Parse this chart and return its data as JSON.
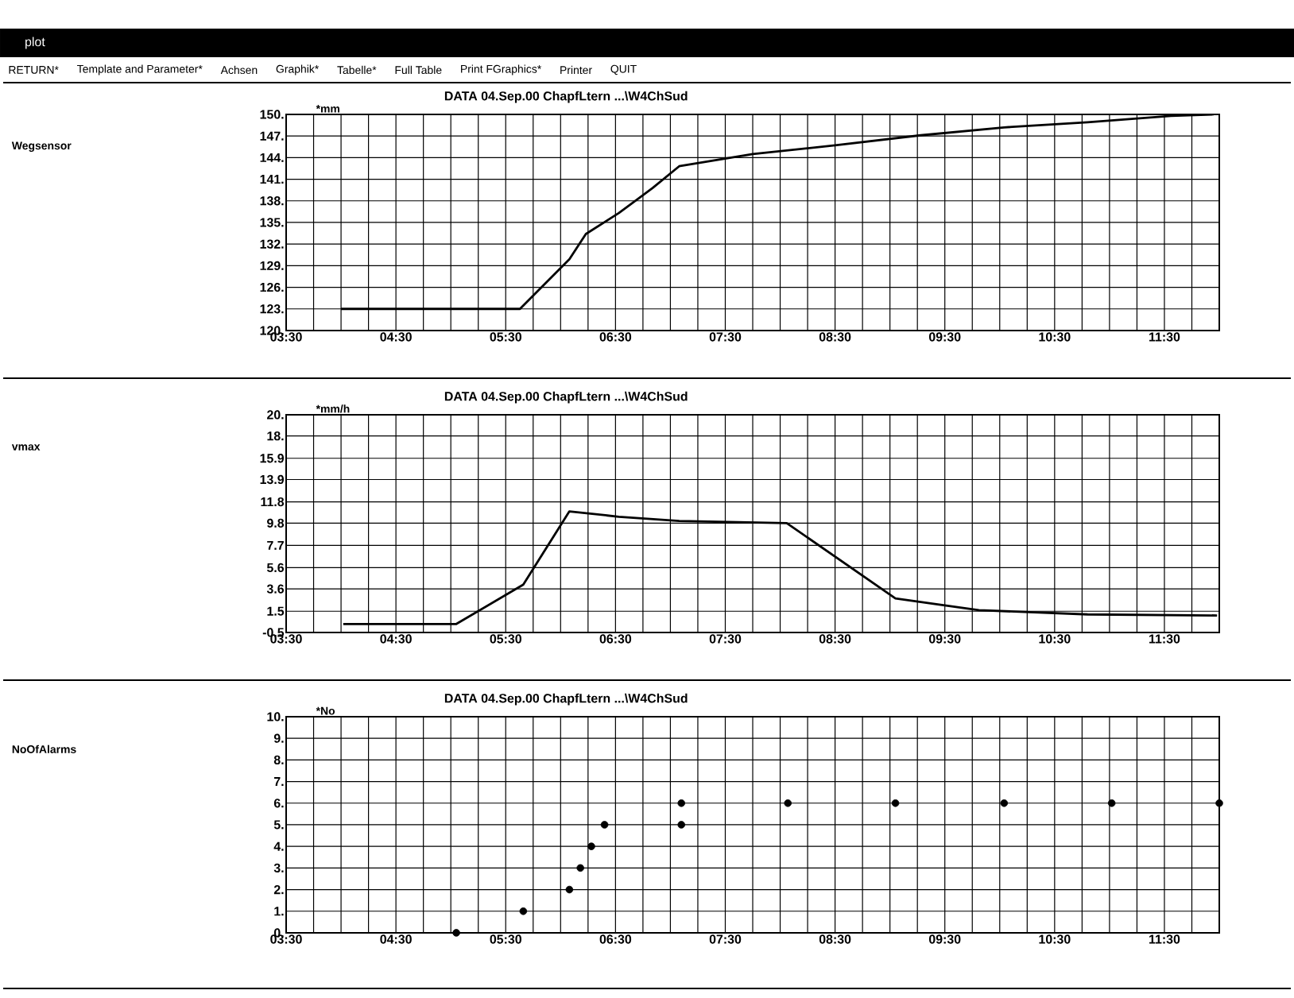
{
  "chart_data": [
    {
      "type": "line",
      "title": "DATA  04.Sep.00   ChapfLtern     ...\\W4ChSud",
      "ylabel": "Wegsensor",
      "annotations": [
        "*mm",
        "plot",
        "RETURN*",
        "Template and Parameter*",
        "Achsen",
        "Graphik*",
        "Tabelle*",
        "Full Table",
        "Print FGraphics*",
        "Printer",
        "QUIT"
      ],
      "x": [
        4.0,
        5.63,
        6.08,
        6.23,
        6.53,
        6.84,
        7.08,
        7.75,
        8.5,
        9.28,
        10.04,
        10.8,
        11.56,
        11.95
      ],
      "series": [
        {
          "color": "#000000",
          "values": [
            123,
            123,
            129.9,
            133.4,
            136.3,
            139.8,
            142.8,
            144.5,
            145.7,
            147.1,
            148.2,
            148.9,
            149.8,
            150
          ]
        }
      ],
      "xlim": [
        3.5,
        12.0
      ],
      "xticks": [
        {
          "value": 3.5,
          "label": "03:30"
        },
        {
          "value": 3.75,
          "label": null
        },
        {
          "value": 4.0,
          "label": null
        },
        {
          "value": 4.25,
          "label": null
        },
        {
          "value": 4.5,
          "label": "04:30"
        },
        {
          "value": 4.75,
          "label": null
        },
        {
          "value": 5.0,
          "label": null
        },
        {
          "value": 5.25,
          "label": null
        },
        {
          "value": 5.5,
          "label": "05:30"
        },
        {
          "value": 5.75,
          "label": null
        },
        {
          "value": 6.0,
          "label": null
        },
        {
          "value": 6.25,
          "label": null
        },
        {
          "value": 6.5,
          "label": "06:30"
        },
        {
          "value": 6.75,
          "label": null
        },
        {
          "value": 7.0,
          "label": null
        },
        {
          "value": 7.25,
          "label": null
        },
        {
          "value": 7.5,
          "label": "07:30"
        },
        {
          "value": 7.75,
          "label": null
        },
        {
          "value": 8.0,
          "label": null
        },
        {
          "value": 8.25,
          "label": null
        },
        {
          "value": 8.5,
          "label": "08:30"
        },
        {
          "value": 8.75,
          "label": null
        },
        {
          "value": 9.0,
          "label": null
        },
        {
          "value": 9.25,
          "label": null
        },
        {
          "value": 9.5,
          "label": "09:30"
        },
        {
          "value": 9.75,
          "label": null
        },
        {
          "value": 10.0,
          "label": null
        },
        {
          "value": 10.25,
          "label": null
        },
        {
          "value": 10.5,
          "label": "10:30"
        },
        {
          "value": 10.75,
          "label": null
        },
        {
          "value": 11.0,
          "label": null
        },
        {
          "value": 11.25,
          "label": null
        },
        {
          "value": 11.5,
          "label": "11:30"
        },
        {
          "value": 11.75,
          "label": null
        },
        {
          "value": 12.0,
          "label": null
        }
      ],
      "ylim": [
        120,
        150
      ],
      "yticks": [
        {
          "value": 120,
          "label": "120."
        },
        {
          "value": 123,
          "label": "123."
        },
        {
          "value": 126,
          "label": "126."
        },
        {
          "value": 129,
          "label": "129."
        },
        {
          "value": 132,
          "label": "132."
        },
        {
          "value": 135,
          "label": "135."
        },
        {
          "value": 138,
          "label": "138."
        },
        {
          "value": 141,
          "label": "141."
        },
        {
          "value": 144,
          "label": "144."
        },
        {
          "value": 147,
          "label": "147."
        },
        {
          "value": 150,
          "label": "150."
        }
      ],
      "grid": true
    },
    {
      "type": "line",
      "title": "DATA  04.Sep.00   ChapfLtern     ...\\W4ChSud",
      "ylabel": "vmax",
      "annotations": [
        "*mm/h"
      ],
      "x": [
        4.02,
        5.05,
        5.66,
        6.08,
        6.53,
        7.08,
        8.06,
        9.05,
        9.81,
        10.8,
        11.98
      ],
      "series": [
        {
          "color": "#000000",
          "values": [
            0.3,
            0.3,
            4.0,
            10.9,
            10.4,
            10.0,
            9.8,
            2.7,
            1.6,
            1.2,
            1.1
          ]
        }
      ],
      "xlim": [
        3.5,
        12.0
      ],
      "xticks": [
        {
          "value": 3.5,
          "label": "03:30"
        },
        {
          "value": 3.75,
          "label": null
        },
        {
          "value": 4.0,
          "label": null
        },
        {
          "value": 4.25,
          "label": null
        },
        {
          "value": 4.5,
          "label": "04:30"
        },
        {
          "value": 4.75,
          "label": null
        },
        {
          "value": 5.0,
          "label": null
        },
        {
          "value": 5.25,
          "label": null
        },
        {
          "value": 5.5,
          "label": "05:30"
        },
        {
          "value": 5.75,
          "label": null
        },
        {
          "value": 6.0,
          "label": null
        },
        {
          "value": 6.25,
          "label": null
        },
        {
          "value": 6.5,
          "label": "06:30"
        },
        {
          "value": 6.75,
          "label": null
        },
        {
          "value": 7.0,
          "label": null
        },
        {
          "value": 7.25,
          "label": null
        },
        {
          "value": 7.5,
          "label": "07:30"
        },
        {
          "value": 7.75,
          "label": null
        },
        {
          "value": 8.0,
          "label": null
        },
        {
          "value": 8.25,
          "label": null
        },
        {
          "value": 8.5,
          "label": "08:30"
        },
        {
          "value": 8.75,
          "label": null
        },
        {
          "value": 9.0,
          "label": null
        },
        {
          "value": 9.25,
          "label": null
        },
        {
          "value": 9.5,
          "label": "09:30"
        },
        {
          "value": 9.75,
          "label": null
        },
        {
          "value": 10.0,
          "label": null
        },
        {
          "value": 10.25,
          "label": null
        },
        {
          "value": 10.5,
          "label": "10:30"
        },
        {
          "value": 10.75,
          "label": null
        },
        {
          "value": 11.0,
          "label": null
        },
        {
          "value": 11.25,
          "label": null
        },
        {
          "value": 11.5,
          "label": "11:30"
        },
        {
          "value": 11.75,
          "label": null
        },
        {
          "value": 12.0,
          "label": null
        }
      ],
      "ylim": [
        -0.5,
        20
      ],
      "yticks": [
        -0.5,
        1.5,
        3.6,
        5.6,
        7.7,
        9.8,
        11.8,
        13.9,
        15.9,
        {
          "value": 18,
          "label": "18."
        },
        {
          "value": 20,
          "label": "20."
        }
      ],
      "grid": true
    },
    {
      "type": "scatter",
      "title": "DATA  04.Sep.00   ChapfLtern     ...\\W4ChSud",
      "ylabel": "NoOfAlarms",
      "annotations": [
        "*No"
      ],
      "x": [
        5.05,
        5.66,
        6.08,
        6.18,
        6.28,
        6.4,
        7.1,
        7.1,
        8.07,
        9.05,
        10.04,
        11.02,
        12.0
      ],
      "series": [
        {
          "color": "#000000",
          "values": [
            0,
            1,
            2,
            3,
            4,
            5,
            5,
            6,
            6,
            6,
            6,
            6,
            6
          ]
        }
      ],
      "marker": "circle",
      "xlim": [
        3.5,
        12.0
      ],
      "xticks": [
        {
          "value": 3.5,
          "label": "03:30"
        },
        {
          "value": 3.75,
          "label": null
        },
        {
          "value": 4.0,
          "label": null
        },
        {
          "value": 4.25,
          "label": null
        },
        {
          "value": 4.5,
          "label": "04:30"
        },
        {
          "value": 4.75,
          "label": null
        },
        {
          "value": 5.0,
          "label": null
        },
        {
          "value": 5.25,
          "label": null
        },
        {
          "value": 5.5,
          "label": "05:30"
        },
        {
          "value": 5.75,
          "label": null
        },
        {
          "value": 6.0,
          "label": null
        },
        {
          "value": 6.25,
          "label": null
        },
        {
          "value": 6.5,
          "label": "06:30"
        },
        {
          "value": 6.75,
          "label": null
        },
        {
          "value": 7.0,
          "label": null
        },
        {
          "value": 7.25,
          "label": null
        },
        {
          "value": 7.5,
          "label": "07:30"
        },
        {
          "value": 7.75,
          "label": null
        },
        {
          "value": 8.0,
          "label": null
        },
        {
          "value": 8.25,
          "label": null
        },
        {
          "value": 8.5,
          "label": "08:30"
        },
        {
          "value": 8.75,
          "label": null
        },
        {
          "value": 9.0,
          "label": null
        },
        {
          "value": 9.25,
          "label": null
        },
        {
          "value": 9.5,
          "label": "09:30"
        },
        {
          "value": 9.75,
          "label": null
        },
        {
          "value": 10.0,
          "label": null
        },
        {
          "value": 10.25,
          "label": null
        },
        {
          "value": 10.5,
          "label": "10:30"
        },
        {
          "value": 10.75,
          "label": null
        },
        {
          "value": 11.0,
          "label": null
        },
        {
          "value": 11.25,
          "label": null
        },
        {
          "value": 11.5,
          "label": "11:30"
        },
        {
          "value": 11.75,
          "label": null
        },
        {
          "value": 12.0,
          "label": null
        }
      ],
      "ylim": [
        0,
        10
      ],
      "yticks": [
        {
          "value": 0,
          "label": "0."
        },
        {
          "value": 1,
          "label": "1."
        },
        {
          "value": 2,
          "label": "2."
        },
        {
          "value": 3,
          "label": "3."
        },
        {
          "value": 4,
          "label": "4."
        },
        {
          "value": 5,
          "label": "5."
        },
        {
          "value": 6,
          "label": "6."
        },
        {
          "value": 7,
          "label": "7."
        },
        {
          "value": 8,
          "label": "8."
        },
        {
          "value": 9,
          "label": "9."
        },
        {
          "value": 10,
          "label": "10."
        }
      ],
      "grid": true
    }
  ]
}
